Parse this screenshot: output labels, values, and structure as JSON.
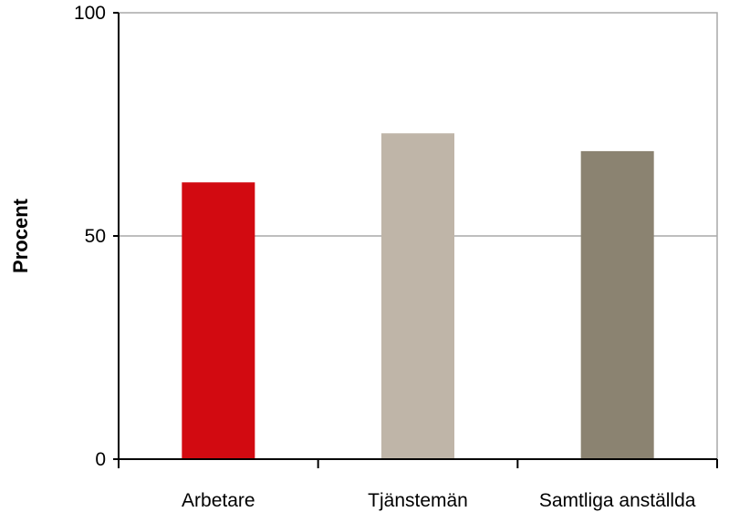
{
  "chart_data": {
    "type": "bar",
    "title": "",
    "xlabel": "",
    "ylabel": "Procent",
    "ylim": [
      0,
      100
    ],
    "yticks": [
      0,
      50,
      100
    ],
    "grid": true,
    "categories": [
      "Arbetare",
      "Tjänstemän",
      "Samtliga anställda"
    ],
    "values": [
      62,
      73,
      69
    ],
    "colors": [
      "#d20a11",
      "#bfb5a8",
      "#8b8371"
    ]
  }
}
